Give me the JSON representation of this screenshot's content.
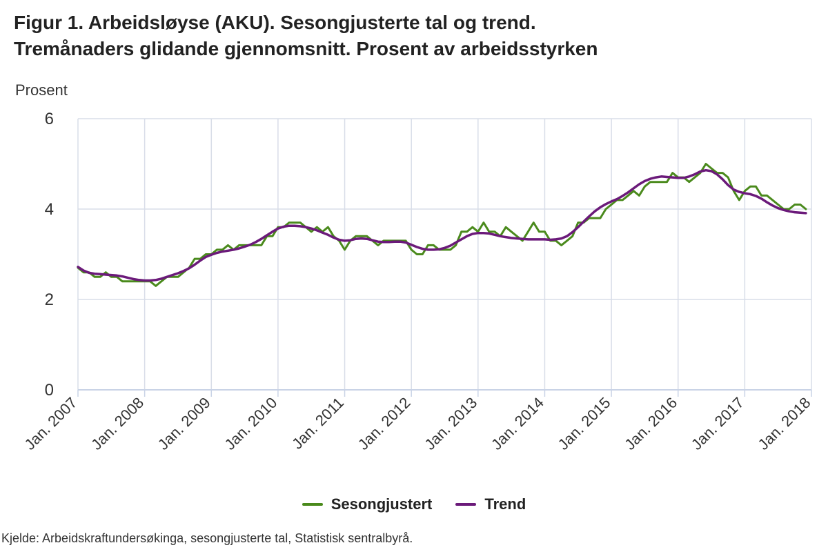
{
  "title_line1": "Figur 1. Arbeidsløyse (AKU). Sesongjusterte tal og trend.",
  "title_line2": "Tremånaders glidande gjennomsnitt. Prosent av arbeidsstyrken",
  "source": "Kjelde: Arbeidskraftundersøkinga, sesongjusterte tal, Statistisk sentralbyrå.",
  "colors": {
    "sesongjustert": "#4a8a1c",
    "trend": "#6b1a7a",
    "grid": "#d8dde8",
    "axis": "#c9d3e6"
  },
  "chart_data": {
    "type": "line",
    "ylabel": "Prosent",
    "ylim": [
      0,
      6
    ],
    "yticks": [
      0,
      2,
      4,
      6
    ],
    "grid": true,
    "legend_position": "bottom",
    "x_start": "2007-01",
    "x_end": "2018-01",
    "xticks": [
      "Jan. 2007",
      "Jan. 2008",
      "Jan. 2009",
      "Jan. 2010",
      "Jan. 2011",
      "Jan. 2012",
      "Jan. 2013",
      "Jan. 2014",
      "Jan. 2015",
      "Jan. 2016",
      "Jan. 2017",
      "Jan. 2018"
    ],
    "series": [
      {
        "name": "Sesongjustert",
        "points": [
          [
            "2007-01",
            2.7
          ],
          [
            "2007-02",
            2.6
          ],
          [
            "2007-03",
            2.6
          ],
          [
            "2007-04",
            2.5
          ],
          [
            "2007-05",
            2.5
          ],
          [
            "2007-06",
            2.6
          ],
          [
            "2007-07",
            2.5
          ],
          [
            "2007-08",
            2.5
          ],
          [
            "2007-09",
            2.4
          ],
          [
            "2007-10",
            2.4
          ],
          [
            "2007-11",
            2.4
          ],
          [
            "2007-12",
            2.4
          ],
          [
            "2008-01",
            2.4
          ],
          [
            "2008-02",
            2.4
          ],
          [
            "2008-03",
            2.3
          ],
          [
            "2008-04",
            2.4
          ],
          [
            "2008-05",
            2.5
          ],
          [
            "2008-06",
            2.5
          ],
          [
            "2008-07",
            2.5
          ],
          [
            "2008-08",
            2.6
          ],
          [
            "2008-09",
            2.7
          ],
          [
            "2008-10",
            2.9
          ],
          [
            "2008-11",
            2.9
          ],
          [
            "2008-12",
            3.0
          ],
          [
            "2009-01",
            3.0
          ],
          [
            "2009-02",
            3.1
          ],
          [
            "2009-03",
            3.1
          ],
          [
            "2009-04",
            3.2
          ],
          [
            "2009-05",
            3.1
          ],
          [
            "2009-06",
            3.2
          ],
          [
            "2009-07",
            3.2
          ],
          [
            "2009-08",
            3.2
          ],
          [
            "2009-09",
            3.2
          ],
          [
            "2009-10",
            3.2
          ],
          [
            "2009-11",
            3.4
          ],
          [
            "2009-12",
            3.4
          ],
          [
            "2010-01",
            3.6
          ],
          [
            "2010-02",
            3.6
          ],
          [
            "2010-03",
            3.7
          ],
          [
            "2010-04",
            3.7
          ],
          [
            "2010-05",
            3.7
          ],
          [
            "2010-06",
            3.6
          ],
          [
            "2010-07",
            3.5
          ],
          [
            "2010-08",
            3.6
          ],
          [
            "2010-09",
            3.5
          ],
          [
            "2010-10",
            3.6
          ],
          [
            "2010-11",
            3.4
          ],
          [
            "2010-12",
            3.3
          ],
          [
            "2011-01",
            3.1
          ],
          [
            "2011-02",
            3.3
          ],
          [
            "2011-03",
            3.4
          ],
          [
            "2011-04",
            3.4
          ],
          [
            "2011-05",
            3.4
          ],
          [
            "2011-06",
            3.3
          ],
          [
            "2011-07",
            3.2
          ],
          [
            "2011-08",
            3.3
          ],
          [
            "2011-09",
            3.3
          ],
          [
            "2011-10",
            3.3
          ],
          [
            "2011-11",
            3.3
          ],
          [
            "2011-12",
            3.3
          ],
          [
            "2012-01",
            3.1
          ],
          [
            "2012-02",
            3.0
          ],
          [
            "2012-03",
            3.0
          ],
          [
            "2012-04",
            3.2
          ],
          [
            "2012-05",
            3.2
          ],
          [
            "2012-06",
            3.1
          ],
          [
            "2012-07",
            3.1
          ],
          [
            "2012-08",
            3.1
          ],
          [
            "2012-09",
            3.2
          ],
          [
            "2012-10",
            3.5
          ],
          [
            "2012-11",
            3.5
          ],
          [
            "2012-12",
            3.6
          ],
          [
            "2013-01",
            3.5
          ],
          [
            "2013-02",
            3.7
          ],
          [
            "2013-03",
            3.5
          ],
          [
            "2013-04",
            3.5
          ],
          [
            "2013-05",
            3.4
          ],
          [
            "2013-06",
            3.6
          ],
          [
            "2013-07",
            3.5
          ],
          [
            "2013-08",
            3.4
          ],
          [
            "2013-09",
            3.3
          ],
          [
            "2013-10",
            3.5
          ],
          [
            "2013-11",
            3.7
          ],
          [
            "2013-12",
            3.5
          ],
          [
            "2014-01",
            3.5
          ],
          [
            "2014-02",
            3.3
          ],
          [
            "2014-03",
            3.3
          ],
          [
            "2014-04",
            3.2
          ],
          [
            "2014-05",
            3.3
          ],
          [
            "2014-06",
            3.4
          ],
          [
            "2014-07",
            3.7
          ],
          [
            "2014-08",
            3.7
          ],
          [
            "2014-09",
            3.8
          ],
          [
            "2014-10",
            3.8
          ],
          [
            "2014-11",
            3.8
          ],
          [
            "2014-12",
            4.0
          ],
          [
            "2015-01",
            4.1
          ],
          [
            "2015-02",
            4.2
          ],
          [
            "2015-03",
            4.2
          ],
          [
            "2015-04",
            4.3
          ],
          [
            "2015-05",
            4.4
          ],
          [
            "2015-06",
            4.3
          ],
          [
            "2015-07",
            4.5
          ],
          [
            "2015-08",
            4.6
          ],
          [
            "2015-09",
            4.6
          ],
          [
            "2015-10",
            4.6
          ],
          [
            "2015-11",
            4.6
          ],
          [
            "2015-12",
            4.8
          ],
          [
            "2016-01",
            4.7
          ],
          [
            "2016-02",
            4.7
          ],
          [
            "2016-03",
            4.6
          ],
          [
            "2016-04",
            4.7
          ],
          [
            "2016-05",
            4.8
          ],
          [
            "2016-06",
            5.0
          ],
          [
            "2016-07",
            4.9
          ],
          [
            "2016-08",
            4.8
          ],
          [
            "2016-09",
            4.8
          ],
          [
            "2016-10",
            4.7
          ],
          [
            "2016-11",
            4.4
          ],
          [
            "2016-12",
            4.2
          ],
          [
            "2017-01",
            4.4
          ],
          [
            "2017-02",
            4.5
          ],
          [
            "2017-03",
            4.5
          ],
          [
            "2017-04",
            4.3
          ],
          [
            "2017-05",
            4.3
          ],
          [
            "2017-06",
            4.2
          ],
          [
            "2017-07",
            4.1
          ],
          [
            "2017-08",
            4.0
          ],
          [
            "2017-09",
            4.0
          ],
          [
            "2017-10",
            4.1
          ],
          [
            "2017-11",
            4.1
          ],
          [
            "2017-12",
            4.0
          ]
        ]
      },
      {
        "name": "Trend",
        "points": [
          [
            "2007-01",
            2.72
          ],
          [
            "2007-02",
            2.64
          ],
          [
            "2007-03",
            2.59
          ],
          [
            "2007-04",
            2.57
          ],
          [
            "2007-05",
            2.56
          ],
          [
            "2007-06",
            2.55
          ],
          [
            "2007-07",
            2.54
          ],
          [
            "2007-08",
            2.53
          ],
          [
            "2007-09",
            2.51
          ],
          [
            "2007-10",
            2.48
          ],
          [
            "2007-11",
            2.45
          ],
          [
            "2007-12",
            2.43
          ],
          [
            "2008-01",
            2.42
          ],
          [
            "2008-02",
            2.42
          ],
          [
            "2008-03",
            2.43
          ],
          [
            "2008-04",
            2.46
          ],
          [
            "2008-05",
            2.5
          ],
          [
            "2008-06",
            2.54
          ],
          [
            "2008-07",
            2.58
          ],
          [
            "2008-08",
            2.63
          ],
          [
            "2008-09",
            2.69
          ],
          [
            "2008-10",
            2.77
          ],
          [
            "2008-11",
            2.86
          ],
          [
            "2008-12",
            2.94
          ],
          [
            "2009-01",
            2.99
          ],
          [
            "2009-02",
            3.03
          ],
          [
            "2009-03",
            3.06
          ],
          [
            "2009-04",
            3.08
          ],
          [
            "2009-05",
            3.1
          ],
          [
            "2009-06",
            3.13
          ],
          [
            "2009-07",
            3.17
          ],
          [
            "2009-08",
            3.21
          ],
          [
            "2009-09",
            3.27
          ],
          [
            "2009-10",
            3.34
          ],
          [
            "2009-11",
            3.42
          ],
          [
            "2009-12",
            3.5
          ],
          [
            "2010-01",
            3.57
          ],
          [
            "2010-02",
            3.61
          ],
          [
            "2010-03",
            3.63
          ],
          [
            "2010-04",
            3.63
          ],
          [
            "2010-05",
            3.62
          ],
          [
            "2010-06",
            3.6
          ],
          [
            "2010-07",
            3.57
          ],
          [
            "2010-08",
            3.53
          ],
          [
            "2010-09",
            3.48
          ],
          [
            "2010-10",
            3.43
          ],
          [
            "2010-11",
            3.37
          ],
          [
            "2010-12",
            3.32
          ],
          [
            "2011-01",
            3.3
          ],
          [
            "2011-02",
            3.31
          ],
          [
            "2011-03",
            3.34
          ],
          [
            "2011-04",
            3.35
          ],
          [
            "2011-05",
            3.34
          ],
          [
            "2011-06",
            3.31
          ],
          [
            "2011-07",
            3.28
          ],
          [
            "2011-08",
            3.27
          ],
          [
            "2011-09",
            3.27
          ],
          [
            "2011-10",
            3.28
          ],
          [
            "2011-11",
            3.28
          ],
          [
            "2011-12",
            3.26
          ],
          [
            "2012-01",
            3.21
          ],
          [
            "2012-02",
            3.16
          ],
          [
            "2012-03",
            3.12
          ],
          [
            "2012-04",
            3.1
          ],
          [
            "2012-05",
            3.1
          ],
          [
            "2012-06",
            3.11
          ],
          [
            "2012-07",
            3.14
          ],
          [
            "2012-08",
            3.19
          ],
          [
            "2012-09",
            3.26
          ],
          [
            "2012-10",
            3.33
          ],
          [
            "2012-11",
            3.4
          ],
          [
            "2012-12",
            3.45
          ],
          [
            "2013-01",
            3.47
          ],
          [
            "2013-02",
            3.47
          ],
          [
            "2013-03",
            3.46
          ],
          [
            "2013-04",
            3.43
          ],
          [
            "2013-05",
            3.4
          ],
          [
            "2013-06",
            3.38
          ],
          [
            "2013-07",
            3.36
          ],
          [
            "2013-08",
            3.35
          ],
          [
            "2013-09",
            3.34
          ],
          [
            "2013-10",
            3.33
          ],
          [
            "2013-11",
            3.33
          ],
          [
            "2013-12",
            3.33
          ],
          [
            "2014-01",
            3.33
          ],
          [
            "2014-02",
            3.32
          ],
          [
            "2014-03",
            3.33
          ],
          [
            "2014-04",
            3.35
          ],
          [
            "2014-05",
            3.4
          ],
          [
            "2014-06",
            3.49
          ],
          [
            "2014-07",
            3.6
          ],
          [
            "2014-08",
            3.72
          ],
          [
            "2014-09",
            3.84
          ],
          [
            "2014-10",
            3.95
          ],
          [
            "2014-11",
            4.04
          ],
          [
            "2014-12",
            4.11
          ],
          [
            "2015-01",
            4.17
          ],
          [
            "2015-02",
            4.22
          ],
          [
            "2015-03",
            4.29
          ],
          [
            "2015-04",
            4.37
          ],
          [
            "2015-05",
            4.46
          ],
          [
            "2015-06",
            4.55
          ],
          [
            "2015-07",
            4.62
          ],
          [
            "2015-08",
            4.67
          ],
          [
            "2015-09",
            4.7
          ],
          [
            "2015-10",
            4.72
          ],
          [
            "2015-11",
            4.71
          ],
          [
            "2015-12",
            4.7
          ],
          [
            "2016-01",
            4.69
          ],
          [
            "2016-02",
            4.69
          ],
          [
            "2016-03",
            4.72
          ],
          [
            "2016-04",
            4.77
          ],
          [
            "2016-05",
            4.83
          ],
          [
            "2016-06",
            4.86
          ],
          [
            "2016-07",
            4.84
          ],
          [
            "2016-08",
            4.77
          ],
          [
            "2016-09",
            4.66
          ],
          [
            "2016-10",
            4.53
          ],
          [
            "2016-11",
            4.43
          ],
          [
            "2016-12",
            4.38
          ],
          [
            "2017-01",
            4.35
          ],
          [
            "2017-02",
            4.33
          ],
          [
            "2017-03",
            4.29
          ],
          [
            "2017-04",
            4.23
          ],
          [
            "2017-05",
            4.15
          ],
          [
            "2017-06",
            4.08
          ],
          [
            "2017-07",
            4.02
          ],
          [
            "2017-08",
            3.98
          ],
          [
            "2017-09",
            3.95
          ],
          [
            "2017-10",
            3.93
          ],
          [
            "2017-11",
            3.92
          ],
          [
            "2017-12",
            3.91
          ]
        ]
      }
    ]
  }
}
